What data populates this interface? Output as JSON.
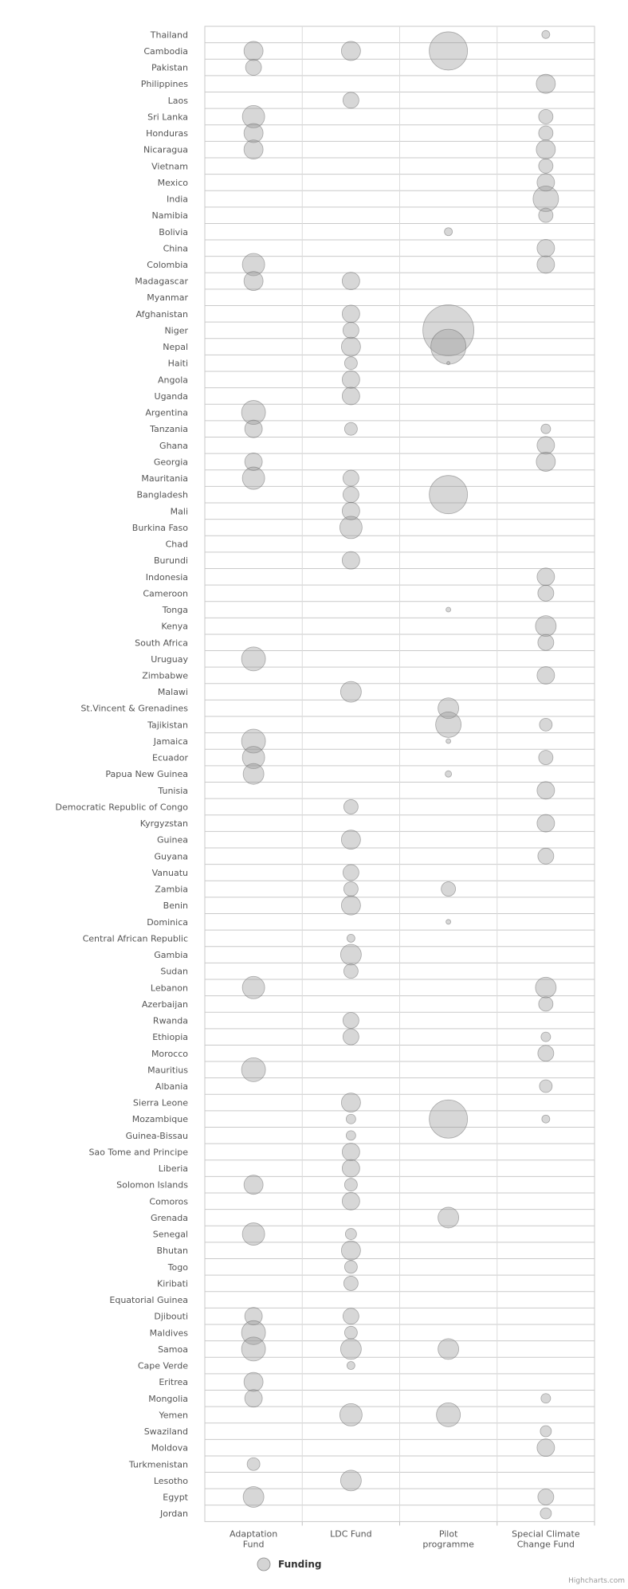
{
  "chart_data": {
    "type": "scatter",
    "subtype": "bubble",
    "categories": [
      "Thailand",
      "Cambodia",
      "Pakistan",
      "Philippines",
      "Laos",
      "Sri Lanka",
      "Honduras",
      "Nicaragua",
      "Vietnam",
      "Mexico",
      "India",
      "Namibia",
      "Bolivia",
      "China",
      "Colombia",
      "Madagascar",
      "Myanmar",
      "Afghanistan",
      "Niger",
      "Nepal",
      "Haiti",
      "Angola",
      "Uganda",
      "Argentina",
      "Tanzania",
      "Ghana",
      "Georgia",
      "Mauritania",
      "Bangladesh",
      "Mali",
      "Burkina Faso",
      "Chad",
      "Burundi",
      "Indonesia",
      "Cameroon",
      "Tonga",
      "Kenya",
      "South Africa",
      "Uruguay",
      "Zimbabwe",
      "Malawi",
      "St.Vincent & Grenadines",
      "Tajikistan",
      "Jamaica",
      "Ecuador",
      "Papua New Guinea",
      "Tunisia",
      "Democratic Republic of Congo",
      "Kyrgyzstan",
      "Guinea",
      "Guyana",
      "Vanuatu",
      "Zambia",
      "Benin",
      "Dominica",
      "Central African Republic",
      "Gambia",
      "Sudan",
      "Lebanon",
      "Azerbaijan",
      "Rwanda",
      "Ethiopia",
      "Morocco",
      "Mauritius",
      "Albania",
      "Sierra Leone",
      "Mozambique",
      "Guinea-Bissau",
      "Sao Tome and Principe",
      "Liberia",
      "Solomon Islands",
      "Comoros",
      "Grenada",
      "Senegal",
      "Bhutan",
      "Togo",
      "Kiribati",
      "Equatorial Guinea",
      "Djibouti",
      "Maldives",
      "Samoa",
      "Cape Verde",
      "Eritrea",
      "Mongolia",
      "Yemen",
      "Swaziland",
      "Moldova",
      "Turkmenistan",
      "Lesotho",
      "Egypt",
      "Jordan"
    ],
    "funds": [
      "Adaptation Fund",
      "LDC Fund",
      "Pilot programme",
      "Special Climate Change Fund"
    ],
    "fund_labels": [
      [
        "Adaptation",
        "Fund"
      ],
      [
        "LDC Fund"
      ],
      [
        "Pilot",
        "programme"
      ],
      [
        "Special Climate",
        "Change Fund"
      ]
    ],
    "legend": {
      "label": "Funding",
      "position": "bottom-center"
    },
    "credit": "Highcharts.com",
    "grid": true,
    "size_unit": "relative bubble size (radius)",
    "points": [
      [
        "Thailand",
        3,
        5
      ],
      [
        "Cambodia",
        0,
        12
      ],
      [
        "Cambodia",
        1,
        12
      ],
      [
        "Cambodia",
        2,
        24
      ],
      [
        "Pakistan",
        0,
        10
      ],
      [
        "Philippines",
        3,
        12
      ],
      [
        "Laos",
        1,
        10
      ],
      [
        "Sri Lanka",
        0,
        14
      ],
      [
        "Sri Lanka",
        3,
        9
      ],
      [
        "Honduras",
        0,
        12
      ],
      [
        "Honduras",
        3,
        9
      ],
      [
        "Nicaragua",
        0,
        12
      ],
      [
        "Nicaragua",
        3,
        12
      ],
      [
        "Vietnam",
        3,
        9
      ],
      [
        "Mexico",
        3,
        11
      ],
      [
        "India",
        3,
        16
      ],
      [
        "Namibia",
        3,
        9
      ],
      [
        "Bolivia",
        2,
        5
      ],
      [
        "China",
        3,
        11
      ],
      [
        "Colombia",
        0,
        14
      ],
      [
        "Colombia",
        3,
        11
      ],
      [
        "Madagascar",
        0,
        12
      ],
      [
        "Madagascar",
        1,
        11
      ],
      [
        "Afghanistan",
        1,
        11
      ],
      [
        "Niger",
        1,
        10
      ],
      [
        "Niger",
        2,
        32
      ],
      [
        "Nepal",
        1,
        12
      ],
      [
        "Nepal",
        2,
        22
      ],
      [
        "Haiti",
        1,
        8
      ],
      [
        "Haiti",
        2,
        2
      ],
      [
        "Angola",
        1,
        11
      ],
      [
        "Uganda",
        1,
        11
      ],
      [
        "Argentina",
        0,
        15
      ],
      [
        "Tanzania",
        0,
        11
      ],
      [
        "Tanzania",
        1,
        8
      ],
      [
        "Tanzania",
        3,
        6
      ],
      [
        "Ghana",
        3,
        11
      ],
      [
        "Georgia",
        0,
        11
      ],
      [
        "Georgia",
        3,
        12
      ],
      [
        "Mauritania",
        0,
        14
      ],
      [
        "Mauritania",
        1,
        10
      ],
      [
        "Bangladesh",
        1,
        10
      ],
      [
        "Bangladesh",
        2,
        24
      ],
      [
        "Mali",
        1,
        11
      ],
      [
        "Burkina Faso",
        1,
        14
      ],
      [
        "Burundi",
        1,
        11
      ],
      [
        "Indonesia",
        3,
        11
      ],
      [
        "Cameroon",
        3,
        10
      ],
      [
        "Tonga",
        2,
        3
      ],
      [
        "Kenya",
        3,
        13
      ],
      [
        "South Africa",
        3,
        10
      ],
      [
        "Uruguay",
        0,
        15
      ],
      [
        "Zimbabwe",
        3,
        11
      ],
      [
        "Malawi",
        1,
        13
      ],
      [
        "St.Vincent & Grenadines",
        2,
        13
      ],
      [
        "Tajikistan",
        2,
        16
      ],
      [
        "Tajikistan",
        3,
        8
      ],
      [
        "Jamaica",
        0,
        15
      ],
      [
        "Jamaica",
        2,
        3
      ],
      [
        "Ecuador",
        0,
        14
      ],
      [
        "Ecuador",
        3,
        9
      ],
      [
        "Papua New Guinea",
        0,
        13
      ],
      [
        "Papua New Guinea",
        2,
        4
      ],
      [
        "Tunisia",
        3,
        11
      ],
      [
        "Democratic Republic of Congo",
        1,
        9
      ],
      [
        "Kyrgyzstan",
        3,
        11
      ],
      [
        "Guinea",
        1,
        12
      ],
      [
        "Guyana",
        3,
        10
      ],
      [
        "Vanuatu",
        1,
        10
      ],
      [
        "Zambia",
        1,
        9
      ],
      [
        "Zambia",
        2,
        9
      ],
      [
        "Benin",
        1,
        12
      ],
      [
        "Dominica",
        2,
        3
      ],
      [
        "Central African Republic",
        1,
        5
      ],
      [
        "Gambia",
        1,
        13
      ],
      [
        "Sudan",
        1,
        9
      ],
      [
        "Lebanon",
        0,
        14
      ],
      [
        "Lebanon",
        3,
        13
      ],
      [
        "Azerbaijan",
        3,
        9
      ],
      [
        "Rwanda",
        1,
        10
      ],
      [
        "Ethiopia",
        1,
        10
      ],
      [
        "Ethiopia",
        3,
        6
      ],
      [
        "Morocco",
        3,
        10
      ],
      [
        "Mauritius",
        0,
        15
      ],
      [
        "Albania",
        3,
        8
      ],
      [
        "Sierra Leone",
        1,
        12
      ],
      [
        "Mozambique",
        1,
        6
      ],
      [
        "Mozambique",
        2,
        24
      ],
      [
        "Mozambique",
        3,
        5
      ],
      [
        "Guinea-Bissau",
        1,
        6
      ],
      [
        "Sao Tome and Principe",
        1,
        11
      ],
      [
        "Liberia",
        1,
        11
      ],
      [
        "Solomon Islands",
        0,
        12
      ],
      [
        "Solomon Islands",
        1,
        8
      ],
      [
        "Comoros",
        1,
        11
      ],
      [
        "Grenada",
        2,
        13
      ],
      [
        "Senegal",
        0,
        14
      ],
      [
        "Senegal",
        1,
        7
      ],
      [
        "Bhutan",
        1,
        12
      ],
      [
        "Togo",
        1,
        8
      ],
      [
        "Kiribati",
        1,
        9
      ],
      [
        "Djibouti",
        0,
        11
      ],
      [
        "Djibouti",
        1,
        10
      ],
      [
        "Maldives",
        0,
        15
      ],
      [
        "Maldives",
        1,
        8
      ],
      [
        "Samoa",
        0,
        15
      ],
      [
        "Samoa",
        1,
        13
      ],
      [
        "Samoa",
        2,
        13
      ],
      [
        "Cape Verde",
        1,
        5
      ],
      [
        "Eritrea",
        0,
        12
      ],
      [
        "Mongolia",
        0,
        11
      ],
      [
        "Mongolia",
        3,
        6
      ],
      [
        "Yemen",
        1,
        14
      ],
      [
        "Yemen",
        2,
        15
      ],
      [
        "Swaziland",
        3,
        7
      ],
      [
        "Moldova",
        3,
        11
      ],
      [
        "Turkmenistan",
        0,
        8
      ],
      [
        "Lesotho",
        1,
        13
      ],
      [
        "Egypt",
        0,
        13
      ],
      [
        "Egypt",
        3,
        10
      ],
      [
        "Jordan",
        3,
        7
      ]
    ]
  }
}
